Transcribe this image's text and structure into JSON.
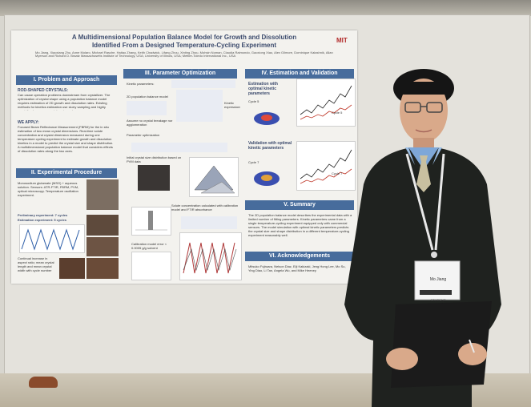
{
  "poster": {
    "title_line1": "A Multidimensional Population Balance Model for Growth and Dissolution",
    "title_line2": "Identified From a Designed Temperature-Cycling Experiment",
    "authors": "Mo Jiang, Xiaoxiang Zhu, Anne Molaro, Michael Rasche, Haitao Zhang, Keith Chadwick, Lifang Zhou, Xinting Zhou, Mohsin Noman, Claudia Raimondo, Gaoxiong Xiao, Alex Gilmore, Dominique Kalashnik, Allan Myerson and Richard D. Braatz",
    "affiliation": "Massachusetts Institute of Technology, USA; University of Illinois, USA; Mettler-Toledo International Inc., USA",
    "logo_text": "MIT",
    "sections": {
      "s1": "I.  Problem and Approach",
      "s2": "II.  Experimental Procedure",
      "s3": "III.  Parameter Optimization",
      "s4": "IV.  Estimation and Validation",
      "s5": "V.  Summary",
      "s6": "VI.  Acknowledgements"
    },
    "problem_heading": "ROD-SHAPED CRYSTALS:",
    "problem_text": "Can cause operation problems downstream from crystallizer. The optimization of crystal shape using a population balance model requires estimation of 2D growth and dissolution rates. Existing methods for kinetics estimation use slurry sampling and highly specialized non-commercial equipment.",
    "approach_heading": "WE APPLY:",
    "approach_text": "Focused Beam Reflectance Measurement (FBRM) for the in situ estimation of two mean crystal dimensions. Real-time solute concentration and crystal dimension measured during one temperature cycling experiment to estimate growth and dissolution kinetics in a model to predict the crystal size and shape distribution. A multidimensional population balance model that considers effects of dissolution rates along the two axes.",
    "exp_text": "Monosodium glutamate (MSG) + aqueous solution. Sensors: ATR-FTIR, FBRM, PVM, optical microscopy. Temperature oscillation experiment.",
    "exp_label1": "Preliminary experiment: 7 cycles",
    "exp_label2": "Estimation experiment: 5 cycles",
    "exp_note": "Continual increase in aspect ratio; mean crystal length and mean crystal width with cycle number",
    "kinetic_label": "Kinetic parameters:",
    "model_label": "2D population balance model",
    "noagg_label": "Assume no crystal breakage nor agglomeration",
    "kinetic_expr": "Kinetic expressions",
    "param_opt": "Parameter optimization",
    "initial_csd": "Initial crystal size distribution based on PVM data",
    "solute_conc": "Solute concentration calculated with calibration model and FTIR absorbance",
    "calib_note": "Calibration model error < 0.0005 g/g solvent",
    "val1_title": "Estimation with optimal kinetic parameters",
    "val2_title": "Validation with optimal kinetic parameters",
    "cycle5": "Cycle 5",
    "cycle7": "Cycle 7",
    "summary_text": "The 2D population balance model describes the experimental data with a limited number of fitting parameters. Kinetic parameters came from a single temperature-cycling experiment equipped only with commercial sensors. The model simulation with optimal kinetic parameters predicts the crystal size and shape distribution in a different temperature-cycling experiment reasonably well.",
    "ack_text": "Mitsuko Fujiwara, Nelson Diaz, Eiji Kakizaki, Jeng Hong Lee, Mo Su, Ying Diao, Li Tan, Angela Wu, and Mike Heeney"
  },
  "badge": {
    "name": "Mo Jiang",
    "footer": "STUDENT"
  },
  "colors": {
    "section_blue": "#476c9c",
    "title_blue": "#3d4c6e",
    "logo_red": "#b22a2a",
    "sweater": "#1f221f"
  }
}
